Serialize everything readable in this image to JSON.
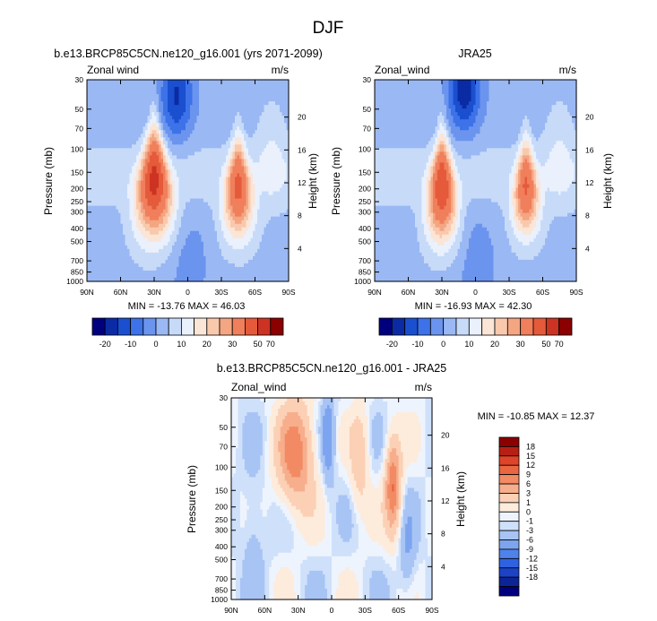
{
  "figure_title": "DJF",
  "colors": {
    "model_obs_scale": [
      "#00007f",
      "#0a2ba3",
      "#1a4fcf",
      "#3d72e8",
      "#6b94ee",
      "#9ab8f3",
      "#c7dbf9",
      "#eaf1fd",
      "#fbe5d6",
      "#f9c9ad",
      "#f4a582",
      "#f07f5c",
      "#e55a3a",
      "#cc3322",
      "#8b0000"
    ],
    "diff_scale": [
      "#00007f",
      "#0d2496",
      "#1c42c6",
      "#2f62e0",
      "#4f82ea",
      "#7da4ef",
      "#a8c4f5",
      "#cfe0fa",
      "#eef4fd",
      "#fdebdc",
      "#fbd0b5",
      "#f7ae8c",
      "#f28a64",
      "#ea6641",
      "#dd4429",
      "#b81f14",
      "#8b0000"
    ]
  },
  "chart_data": [
    {
      "type": "heatmap",
      "title": "b.e13.BRCP85C5CN.ne120_g16.001 (yrs 2071-2099)",
      "label_left": "Zonal wind",
      "label_right": "m/s",
      "ylabel": "Pressure (mb)",
      "y2label": "Height (km)",
      "x_ticks": [
        "90N",
        "60N",
        "30N",
        "0",
        "30S",
        "60S",
        "90S"
      ],
      "y_ticks": [
        "30",
        "50",
        "70",
        "100",
        "150",
        "200",
        "250",
        "300",
        "400",
        "500",
        "700",
        "850",
        "1000"
      ],
      "y2_ticks": [
        "20",
        "16",
        "12",
        "8",
        "4"
      ],
      "stats": "MIN = -13.76  MAX = 46.03",
      "colorbar_ticks": [
        "-20",
        "-10",
        "0",
        "10",
        "20",
        "30",
        "50",
        "70"
      ],
      "jets": [
        {
          "lat": 30,
          "p": 175,
          "peak": 46,
          "wlat": 13,
          "wlog": 0.95
        },
        {
          "lat": -45,
          "p": 200,
          "peak": 36,
          "wlat": 11,
          "wlog": 0.85
        }
      ],
      "easterly": {
        "lat": 10,
        "p": 40,
        "peak": -13.76
      }
    },
    {
      "type": "heatmap",
      "title": "JRA25",
      "label_left": "Zonal_wind",
      "label_right": "m/s",
      "ylabel": "Pressure (mb)",
      "y2label": "Height (km)",
      "x_ticks": [
        "90N",
        "60N",
        "30N",
        "0",
        "30S",
        "60S",
        "90S"
      ],
      "y_ticks": [
        "30",
        "50",
        "70",
        "100",
        "150",
        "200",
        "250",
        "300",
        "400",
        "500",
        "700",
        "850",
        "1000"
      ],
      "y2_ticks": [
        "20",
        "16",
        "12",
        "8",
        "4"
      ],
      "stats": "MIN = -16.93  MAX = 42.30",
      "colorbar_ticks": [
        "-20",
        "-10",
        "0",
        "10",
        "20",
        "30",
        "50",
        "70"
      ],
      "jets": [
        {
          "lat": 30,
          "p": 200,
          "peak": 42,
          "wlat": 11,
          "wlog": 0.9
        },
        {
          "lat": -45,
          "p": 200,
          "peak": 34,
          "wlat": 10,
          "wlog": 0.8
        }
      ],
      "easterly": {
        "lat": 10,
        "p": 35,
        "peak": -16.93
      }
    },
    {
      "type": "heatmap",
      "title": "b.e13.BRCP85C5CN.ne120_g16.001 - JRA25",
      "label_left": "Zonal_wind",
      "label_right": "m/s",
      "ylabel": "Pressure (mb)",
      "y2label": "Height (km)",
      "x_ticks": [
        "90N",
        "60N",
        "30N",
        "0",
        "30S",
        "60S",
        "90S"
      ],
      "y_ticks": [
        "30",
        "50",
        "70",
        "100",
        "150",
        "200",
        "250",
        "300",
        "400",
        "500",
        "700",
        "850",
        "1000"
      ],
      "y2_ticks": [
        "20",
        "16",
        "12",
        "8",
        "4"
      ],
      "stats": "MIN = -10.85  MAX = 12.37",
      "colorbar_ticks": [
        "18",
        "15",
        "12",
        "9",
        "6",
        "3",
        "1",
        "0",
        "-1",
        "-3",
        "-6",
        "-9",
        "-12",
        "-15",
        "-18"
      ]
    }
  ]
}
